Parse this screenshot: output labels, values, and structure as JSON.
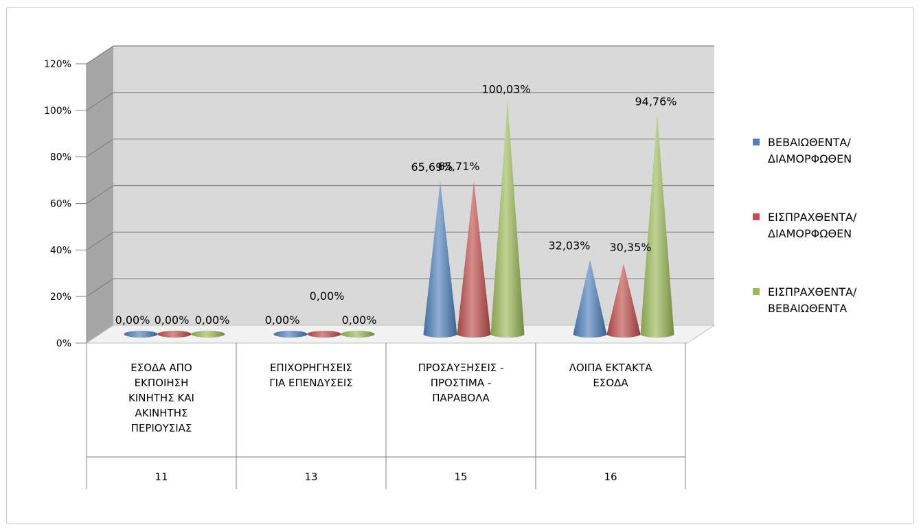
{
  "chart_data": {
    "type": "bar",
    "bar_shape": "cone",
    "categories": [
      "ΕΣΟΔΑ ΑΠΟ\nΕΚΠΟΙΗΣΗ\nΚΙΝΗΤΗΣ ΚΑΙ\nΑΚΙΝΗΤΗΣ\nΠΕΡΙΟΥΣΙΑΣ",
      "ΕΠΙΧΟΡΗΓΗΣΕΙΣ\nΓΙΑ ΕΠΕΝΔΥΣΕΙΣ",
      "ΠΡΟΣΑΥΞΗΣΕΙΣ -\nΠΡΟΣΤΙΜΑ -\nΠΑΡΑΒΟΛΑ",
      "ΛΟΙΠΑ ΕΚΤΑΚΤΑ\nΕΣΟΔΑ"
    ],
    "category_codes": [
      "11",
      "13",
      "15",
      "16"
    ],
    "series": [
      {
        "name": "ΒΕΒΑΙΩΘΕΝΤΑ/\nΔΙΑΜΟΡΦΩΘΕΝ",
        "color": "#4f81bd",
        "values": [
          0.0,
          0.0,
          65.69,
          32.03
        ],
        "labels": [
          "0,00%",
          "0,00%",
          "65,69%",
          "32,03%"
        ]
      },
      {
        "name": "ΕΙΣΠΡΑΧΘΕΝΤΑ/\nΔΙΑΜΟΡΦΩΘΕΝ",
        "color": "#c0504d",
        "values": [
          0.0,
          0.0,
          65.71,
          30.35
        ],
        "labels": [
          "0,00%",
          "0,00%",
          "65,71%",
          "30,35%"
        ]
      },
      {
        "name": "ΕΙΣΠΡΑΧΘΕΝΤΑ/\nΒΕΒΑΙΩΘΕΝΤΑ",
        "color": "#9bbb59",
        "values": [
          0.0,
          0.0,
          100.03,
          94.76
        ],
        "labels": [
          "0,00%",
          "0,00%",
          "100,03%",
          "94,76%"
        ]
      }
    ],
    "y_ticks": [
      "0%",
      "20%",
      "40%",
      "60%",
      "80%",
      "100%",
      "120%"
    ],
    "ylim": [
      0,
      120
    ],
    "unit": "%",
    "grid": true,
    "legend_position": "right",
    "wall_color": "#d9d9d9"
  }
}
